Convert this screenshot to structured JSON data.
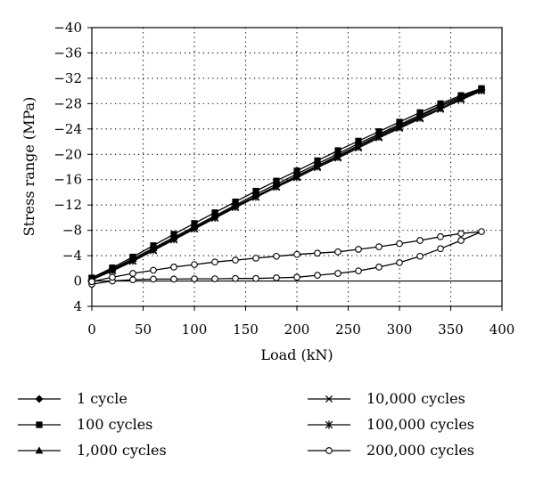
{
  "chart_data": {
    "type": "line",
    "title": "",
    "xlabel": "Load (kN)",
    "ylabel": "Stress range (MPa)",
    "xlim": [
      0,
      400
    ],
    "ylim": [
      4,
      -40
    ],
    "y_axis_inverted": true,
    "x_ticks": [
      0,
      50,
      100,
      150,
      200,
      250,
      300,
      350,
      400
    ],
    "x_tick_labels": [
      "0",
      "50",
      "100",
      "150",
      "200",
      "250",
      "300",
      "350",
      "400"
    ],
    "y_ticks": [
      -40,
      -36,
      -32,
      -28,
      -24,
      -20,
      -16,
      -12,
      -8,
      -4,
      0,
      4
    ],
    "y_tick_labels": [
      "−40",
      "−36",
      "−32",
      "−28",
      "−24",
      "−20",
      "−16",
      "−12",
      "−8",
      "−4",
      "0",
      "4"
    ],
    "grid": "dotted",
    "zero_line": true,
    "legend_position": "bottom",
    "series": [
      {
        "name": "1 cycle",
        "marker": "diamond",
        "x": [
          0,
          20,
          40,
          60,
          80,
          100,
          120,
          140,
          160,
          180,
          200,
          220,
          240,
          260,
          280,
          300,
          320,
          340,
          360,
          380
        ],
        "y": [
          -0.3,
          -1.8,
          -3.3,
          -5.0,
          -6.7,
          -8.4,
          -10.1,
          -11.8,
          -13.4,
          -15.0,
          -16.6,
          -18.2,
          -19.8,
          -21.4,
          -23.0,
          -24.5,
          -26.0,
          -27.6,
          -29.0,
          -30.2
        ]
      },
      {
        "name": "100 cycles",
        "marker": "square",
        "x": [
          0,
          20,
          40,
          60,
          80,
          100,
          120,
          140,
          160,
          180,
          200,
          220,
          240,
          260,
          280,
          300,
          320,
          340,
          360,
          380
        ],
        "y": [
          -0.5,
          -2.1,
          -3.8,
          -5.6,
          -7.4,
          -9.1,
          -10.8,
          -12.5,
          -14.2,
          -15.8,
          -17.4,
          -19.0,
          -20.6,
          -22.1,
          -23.6,
          -25.1,
          -26.6,
          -28.0,
          -29.3,
          -30.4
        ]
      },
      {
        "name": "1,000 cycles",
        "marker": "triangle",
        "x": [
          0,
          20,
          40,
          60,
          80,
          100,
          120,
          140,
          160,
          180,
          200,
          220,
          240,
          260,
          280,
          300,
          320,
          340,
          360,
          380
        ],
        "y": [
          -0.4,
          -1.9,
          -3.5,
          -5.2,
          -6.9,
          -8.6,
          -10.3,
          -12.0,
          -13.7,
          -15.3,
          -16.9,
          -18.5,
          -20.1,
          -21.7,
          -23.2,
          -24.7,
          -26.2,
          -27.7,
          -29.1,
          -30.3
        ]
      },
      {
        "name": "10,000 cycles",
        "marker": "x",
        "x": [
          0,
          20,
          40,
          60,
          80,
          100,
          120,
          140,
          160,
          180,
          200,
          220,
          240,
          260,
          280,
          300,
          320,
          340,
          360,
          380
        ],
        "y": [
          -0.2,
          -1.6,
          -3.1,
          -4.8,
          -6.5,
          -8.2,
          -9.9,
          -11.6,
          -13.2,
          -14.8,
          -16.3,
          -17.9,
          -19.4,
          -21.0,
          -22.6,
          -24.1,
          -25.6,
          -27.1,
          -28.6,
          -30.0
        ]
      },
      {
        "name": "100,000 cycles",
        "marker": "star",
        "x": [
          0,
          20,
          40,
          60,
          80,
          100,
          120,
          140,
          160,
          180,
          200,
          220,
          240,
          260,
          280,
          300,
          320,
          340,
          360,
          380
        ],
        "y": [
          -0.3,
          -1.7,
          -3.2,
          -4.9,
          -6.6,
          -8.3,
          -10.0,
          -11.7,
          -13.3,
          -14.9,
          -16.5,
          -18.1,
          -19.6,
          -21.2,
          -22.8,
          -24.3,
          -25.8,
          -27.3,
          -28.8,
          -30.1
        ]
      },
      {
        "name": "200,000 cycles",
        "marker": "circle",
        "x": [
          0,
          20,
          40,
          60,
          80,
          100,
          120,
          140,
          160,
          180,
          200,
          220,
          240,
          260,
          280,
          300,
          320,
          340,
          360,
          380,
          360,
          340,
          320,
          300,
          280,
          260,
          240,
          220,
          200,
          180,
          160,
          140,
          120,
          100,
          80,
          60,
          40,
          20,
          0
        ],
        "y": [
          0.5,
          0.0,
          -0.2,
          -0.3,
          -0.3,
          -0.35,
          -0.35,
          -0.4,
          -0.4,
          -0.5,
          -0.6,
          -0.9,
          -1.2,
          -1.6,
          -2.2,
          -2.9,
          -3.9,
          -5.1,
          -6.4,
          -7.8,
          -7.5,
          -7.0,
          -6.4,
          -5.9,
          -5.4,
          -5.0,
          -4.6,
          -4.4,
          -4.2,
          -3.9,
          -3.6,
          -3.3,
          -3.0,
          -2.6,
          -2.2,
          -1.7,
          -1.2,
          -0.6,
          0.1
        ]
      }
    ]
  }
}
